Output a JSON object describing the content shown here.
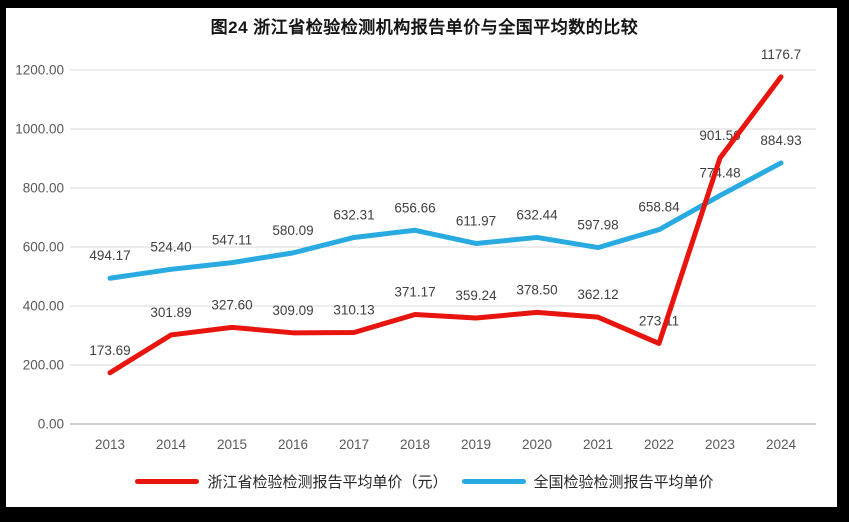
{
  "title": "图24  浙江省检验检测机构报告单价与全国平均数的比较",
  "chart_data": {
    "type": "line",
    "title": "图24  浙江省检验检测机构报告单价与全国平均数的比较",
    "categories": [
      "2013",
      "2014",
      "2015",
      "2016",
      "2017",
      "2018",
      "2019",
      "2020",
      "2021",
      "2022",
      "2023",
      "2024"
    ],
    "series": [
      {
        "name": "浙江省检验检测报告平均单价（元）",
        "color": "#e8140e",
        "values": [
          173.69,
          301.89,
          327.6,
          309.09,
          310.13,
          371.17,
          359.24,
          378.5,
          362.12,
          273.11,
          901.56,
          1176.7
        ],
        "labels": [
          "173.69",
          "301.89",
          "327.60",
          "309.09",
          "310.13",
          "371.17",
          "359.24",
          "378.50",
          "362.12",
          "273.11",
          "901.56",
          "1176.7"
        ]
      },
      {
        "name": "全国检验检测报告平均单价",
        "color": "#29abe2",
        "values": [
          494.17,
          524.4,
          547.11,
          580.09,
          632.31,
          656.66,
          611.97,
          632.44,
          597.98,
          658.84,
          774.48,
          884.93
        ],
        "labels": [
          "494.17",
          "524.40",
          "547.11",
          "580.09",
          "632.31",
          "656.66",
          "611.97",
          "632.44",
          "597.98",
          "658.84",
          "774.48",
          "884.93"
        ]
      }
    ],
    "xlabel": "",
    "ylabel": "",
    "ylim": [
      0,
      1200
    ],
    "ytick_step": 200,
    "ytick_labels": [
      "0.00",
      "200.00",
      "400.00",
      "600.00",
      "800.00",
      "1000.00",
      "1200.00"
    ],
    "grid": true,
    "legend_position": "bottom",
    "axis_color": "#595959",
    "gridline_color": "#d9d9d9",
    "baseline_color": "#bfbfbf",
    "label_color": "#404040",
    "frame_color": "#000000",
    "background_color": "#ffffff"
  }
}
